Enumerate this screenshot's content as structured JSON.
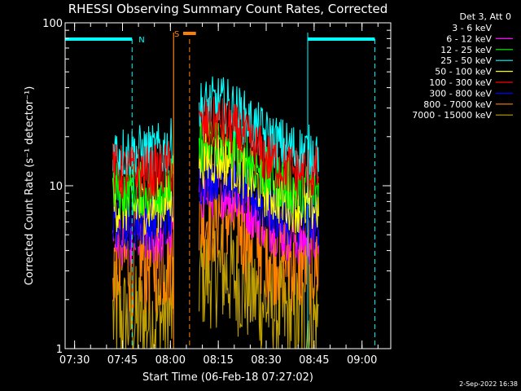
{
  "chart_data": {
    "type": "line",
    "title": "RHESSI Observing Summary Count Rates, Corrected",
    "xlabel": "Start Time (06-Feb-18 07:27:02)",
    "ylabel": "Corrected Count Rate (s⁻¹ detector⁻¹)",
    "y_scale": "log",
    "ylim": [
      1,
      100
    ],
    "xlim": [
      "07:27:02",
      "09:09:00"
    ],
    "x_tick_labels": [
      "07:30",
      "07:45",
      "08:00",
      "08:15",
      "08:30",
      "08:45",
      "09:00"
    ],
    "y_tick_labels": [
      "1",
      "10",
      "100"
    ],
    "legend_title": "Det 3, Att 0",
    "legend_position": "right",
    "timestamp": "2-Sep-2022 16:38",
    "series": [
      {
        "name": "3 - 6 keV",
        "color": "#000000",
        "level": 12.5
      },
      {
        "name": "6 - 12 keV",
        "color": "#ff00ff",
        "level": 9.5
      },
      {
        "name": "12 - 25 keV",
        "color": "#00ff00",
        "level": 19.0
      },
      {
        "name": "25 - 50 keV",
        "color": "#00ffff",
        "level": 32.0
      },
      {
        "name": "50 - 100 keV",
        "color": "#ffff00",
        "level": 15.0
      },
      {
        "name": "100 - 300 keV",
        "color": "#ff0000",
        "level": 24.0
      },
      {
        "name": "300 - 800 keV",
        "color": "#0000ff",
        "level": 12.0
      },
      {
        "name": "800 - 7000 keV",
        "color": "#ff8000",
        "level": 7.0
      },
      {
        "name": "7000 - 15000 keV",
        "color": "#c0a000",
        "level": 3.0
      }
    ],
    "series_x": [
      "07:42:00",
      "07:45:00",
      "07:50:00",
      "07:55:00",
      "08:01:00",
      "08:09:00",
      "08:12:00",
      "08:15:00",
      "08:18:00",
      "08:22:00",
      "08:26:00",
      "08:30:00",
      "08:35:00",
      "08:40:00",
      "08:45:00",
      "08:46:30"
    ],
    "series_envelope": [
      0.52,
      0.5,
      0.5,
      0.5,
      0.55,
      0.93,
      0.97,
      1.0,
      0.96,
      0.85,
      0.72,
      0.62,
      0.55,
      0.5,
      0.5,
      0.5
    ],
    "series_gaps": [
      [
        "08:01:00",
        "08:09:00"
      ]
    ],
    "annotations": [
      {
        "label": "N",
        "kind": "night",
        "color": "#00ffff",
        "intervals": [
          [
            "07:27:02",
            "07:48:00"
          ],
          [
            "08:43:00",
            "09:04:00"
          ]
        ]
      },
      {
        "label": "S",
        "kind": "saa",
        "color": "#ff8000",
        "intervals": [
          [
            "08:04:00",
            "08:08:00"
          ]
        ]
      }
    ],
    "markers": [
      {
        "time": "07:48:00",
        "color": "#00ffff"
      },
      {
        "time": "08:06:00",
        "color": "#ff8000"
      },
      {
        "time": "08:43:00",
        "color": "#00ffff"
      },
      {
        "time": "09:04:00",
        "color": "#00ffff"
      }
    ]
  }
}
